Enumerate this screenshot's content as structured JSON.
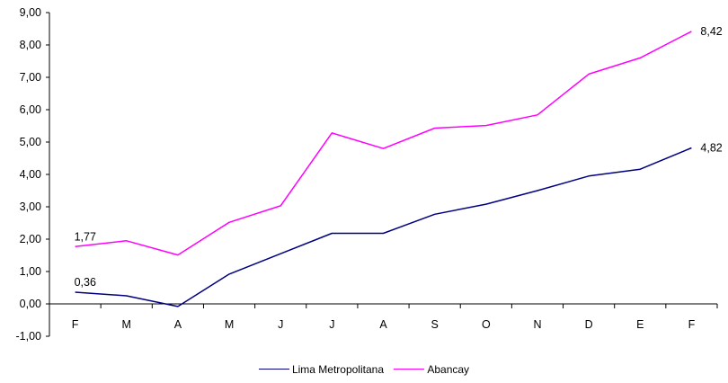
{
  "chart_data": {
    "type": "line",
    "categories": [
      "F",
      "M",
      "A",
      "M",
      "J",
      "J",
      "A",
      "S",
      "O",
      "N",
      "D",
      "E",
      "F"
    ],
    "ylim": [
      -1,
      9
    ],
    "yticks": [
      "-1,00",
      "0,00",
      "1,00",
      "2,00",
      "3,00",
      "4,00",
      "5,00",
      "6,00",
      "7,00",
      "8,00",
      "9,00"
    ],
    "grid": false,
    "legend_position": "bottom",
    "series": [
      {
        "name": "Lima Metropolitana",
        "color": "#000080",
        "values": [
          0.36,
          0.25,
          -0.08,
          0.92,
          1.55,
          2.18,
          2.18,
          2.77,
          3.08,
          3.5,
          3.95,
          4.16,
          4.82
        ],
        "labels": [
          {
            "index": 0,
            "text": "0,36"
          },
          {
            "index": 12,
            "text": "4,82"
          }
        ]
      },
      {
        "name": "Abancay",
        "color": "#ff00ff",
        "values": [
          1.77,
          1.95,
          1.51,
          2.52,
          3.03,
          5.28,
          4.8,
          5.43,
          5.51,
          5.84,
          7.1,
          7.6,
          8.42
        ],
        "labels": [
          {
            "index": 0,
            "text": "1,77"
          },
          {
            "index": 12,
            "text": "8,42"
          }
        ]
      }
    ]
  }
}
